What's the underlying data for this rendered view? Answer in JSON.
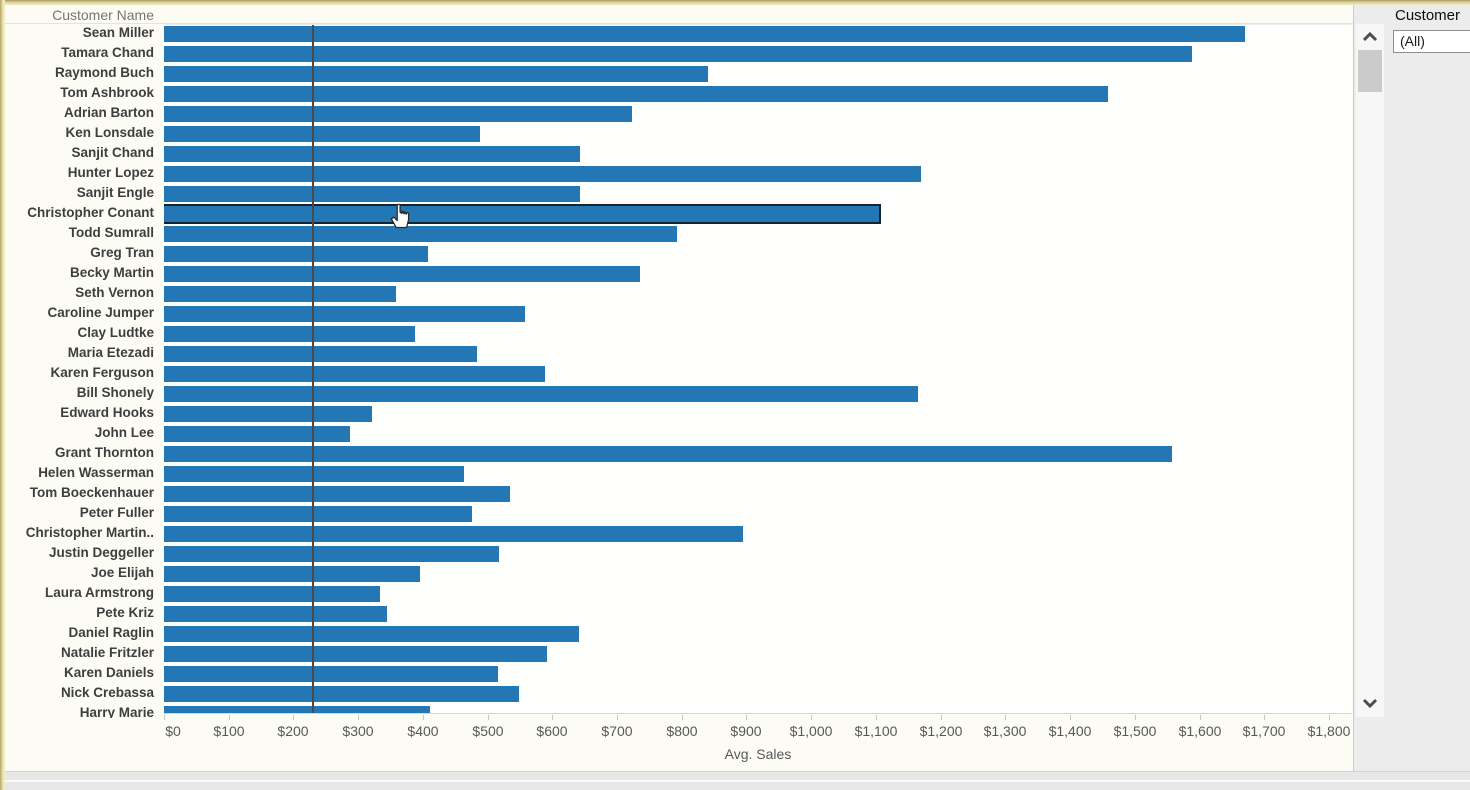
{
  "sheet": {
    "column_header": "Customer Name"
  },
  "chart_data": {
    "type": "bar",
    "orientation": "horizontal",
    "title": "",
    "ylabel": "Customer Name",
    "xlabel": "Avg. Sales",
    "xlim": [
      0,
      1800
    ],
    "tick_interval": 100,
    "tick_labels": [
      "$0",
      "$100",
      "$200",
      "$300",
      "$400",
      "$500",
      "$600",
      "$700",
      "$800",
      "$900",
      "$1,000",
      "$1,100",
      "$1,200",
      "$1,300",
      "$1,400",
      "$1,500",
      "$1,600",
      "$1,700",
      "$1,800"
    ],
    "grid": false,
    "legend": "none",
    "bar_color": "#2277b4",
    "highlighted_category": "Christopher Conant",
    "highlight_border_color": "#17242f",
    "reference_line": {
      "value": 228,
      "color": "#4a4a4a"
    },
    "categories": [
      "Sean Miller",
      "Tamara Chand",
      "Raymond Buch",
      "Tom Ashbrook",
      "Adrian Barton",
      "Ken Lonsdale",
      "Sanjit Chand",
      "Hunter Lopez",
      "Sanjit Engle",
      "Christopher Conant",
      "Todd Sumrall",
      "Greg Tran",
      "Becky Martin",
      "Seth Vernon",
      "Caroline Jumper",
      "Clay Ludtke",
      "Maria Etezadi",
      "Karen Ferguson",
      "Bill Shonely",
      "Edward Hooks",
      "John Lee",
      "Grant Thornton",
      "Helen Wasserman",
      "Tom Boeckenhauer",
      "Peter Fuller",
      "Christopher Martin..",
      "Justin Deggeller",
      "Joe Elijah",
      "Laura Armstrong",
      "Pete Kriz",
      "Daniel Raglin",
      "Natalie Fritzler",
      "Karen Daniels",
      "Nick Crebassa",
      "Harry Marie"
    ],
    "values": [
      1670,
      1588,
      840,
      1458,
      723,
      489,
      643,
      1170,
      642,
      1104,
      793,
      408,
      735,
      359,
      558,
      388,
      484,
      589,
      1165,
      321,
      287,
      1557,
      464,
      535,
      476,
      895,
      518,
      396,
      334,
      345,
      641,
      592,
      516,
      549,
      411
    ]
  },
  "filter_panel": {
    "title": "Customer",
    "value": "(All)"
  },
  "scrollbar": {
    "up_icon": "chevron-up",
    "down_icon": "chevron-down"
  },
  "cursor": {
    "type": "pointer-hand"
  }
}
